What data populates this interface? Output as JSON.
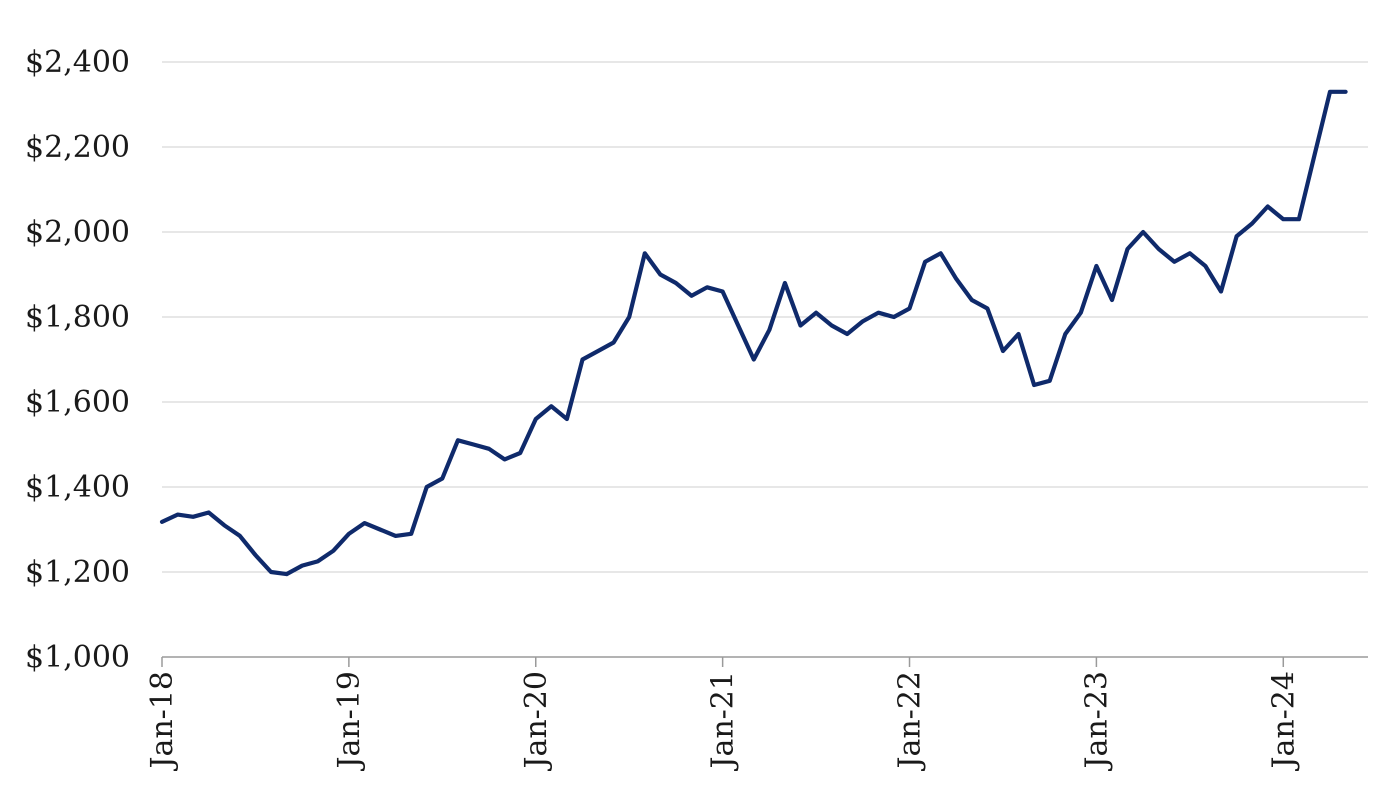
{
  "chart_data": {
    "type": "line",
    "title": "",
    "xlabel": "",
    "ylabel": "",
    "ylim": [
      1000,
      2400
    ],
    "y_ticks": [
      1000,
      1200,
      1400,
      1600,
      1800,
      2000,
      2200,
      2400
    ],
    "y_tick_labels": [
      "$1,000",
      "$1,200",
      "$1,400",
      "$1,600",
      "$1,800",
      "$2,000",
      "$2,200",
      "$2,400"
    ],
    "x_ticks": [
      "2018-01",
      "2019-01",
      "2020-01",
      "2021-01",
      "2022-01",
      "2023-01",
      "2024-01"
    ],
    "x_tick_labels": [
      "Jan-18",
      "Jan-19",
      "Jan-20",
      "Jan-21",
      "Jan-22",
      "Jan-23",
      "Jan-24"
    ],
    "xlim": [
      "2018-01",
      "2024-05"
    ],
    "grid": true,
    "legend": "none",
    "line_color": "#0f2a6b",
    "series": [
      {
        "x": [
          "2018-01",
          "2018-02",
          "2018-03",
          "2018-04",
          "2018-05",
          "2018-06",
          "2018-07",
          "2018-08",
          "2018-09",
          "2018-10",
          "2018-11",
          "2018-12",
          "2019-01",
          "2019-02",
          "2019-03",
          "2019-04",
          "2019-05",
          "2019-06",
          "2019-07",
          "2019-08",
          "2019-09",
          "2019-10",
          "2019-11",
          "2019-12",
          "2020-01",
          "2020-02",
          "2020-03",
          "2020-04",
          "2020-05",
          "2020-06",
          "2020-07",
          "2020-08",
          "2020-09",
          "2020-10",
          "2020-11",
          "2020-12",
          "2021-01",
          "2021-02",
          "2021-03",
          "2021-04",
          "2021-05",
          "2021-06",
          "2021-07",
          "2021-08",
          "2021-09",
          "2021-10",
          "2021-11",
          "2021-12",
          "2022-01",
          "2022-02",
          "2022-03",
          "2022-04",
          "2022-05",
          "2022-06",
          "2022-07",
          "2022-08",
          "2022-09",
          "2022-10",
          "2022-11",
          "2022-12",
          "2023-01",
          "2023-02",
          "2023-03",
          "2023-04",
          "2023-05",
          "2023-06",
          "2023-07",
          "2023-08",
          "2023-09",
          "2023-10",
          "2023-11",
          "2023-12",
          "2024-01",
          "2024-02",
          "2024-03",
          "2024-04",
          "2024-05"
        ],
        "values": [
          1318,
          1335,
          1330,
          1340,
          1310,
          1285,
          1240,
          1200,
          1195,
          1215,
          1225,
          1250,
          1290,
          1315,
          1300,
          1285,
          1290,
          1400,
          1420,
          1510,
          1500,
          1490,
          1465,
          1480,
          1560,
          1590,
          1560,
          1700,
          1720,
          1740,
          1800,
          1950,
          1900,
          1880,
          1850,
          1870,
          1860,
          1780,
          1700,
          1770,
          1880,
          1780,
          1810,
          1780,
          1760,
          1790,
          1810,
          1800,
          1820,
          1930,
          1950,
          1890,
          1840,
          1820,
          1720,
          1760,
          1640,
          1650,
          1760,
          1810,
          1920,
          1840,
          1960,
          2000,
          1960,
          1930,
          1950,
          1920,
          1860,
          1990,
          2020,
          2060,
          2030,
          2030,
          2180,
          2330,
          2330
        ]
      }
    ]
  }
}
